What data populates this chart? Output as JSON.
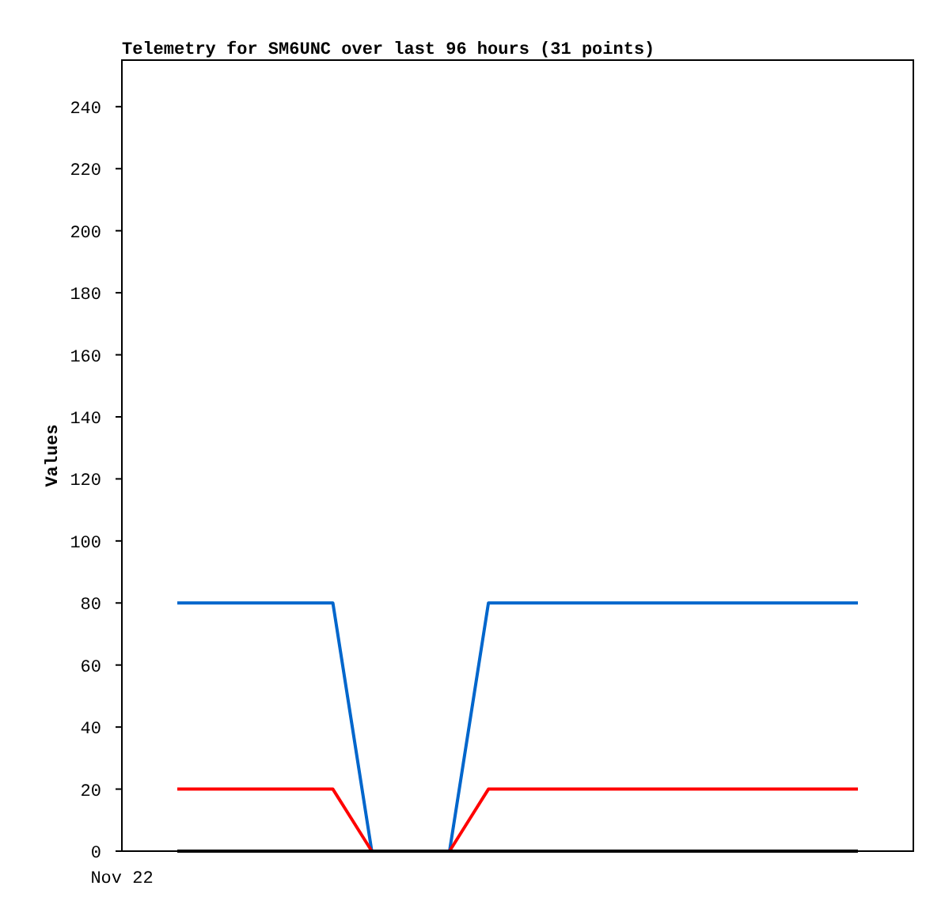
{
  "chart_data": {
    "type": "line",
    "title": "Telemetry for SM6UNC over last 96 hours (31 points)",
    "ylabel": "Values",
    "annotations": [
      "Nov 22"
    ],
    "categories": [
      null,
      null,
      null,
      null,
      null,
      null,
      null,
      null,
      null,
      null,
      null,
      null,
      null,
      null,
      null,
      null,
      null,
      null,
      null,
      null,
      null,
      null,
      null,
      null,
      null,
      null,
      null,
      null,
      null,
      null,
      null,
      null,
      null,
      null,
      null,
      null
    ],
    "ylim": [
      0,
      255
    ],
    "yticks": [
      0,
      20,
      40,
      60,
      80,
      100,
      120,
      140,
      160,
      180,
      200,
      220,
      240
    ],
    "series": [
      {
        "color": "#0066cc",
        "values": [
          80,
          80,
          80,
          80,
          80,
          80,
          80,
          80,
          80,
          40,
          0,
          0,
          0,
          0,
          0,
          40,
          80,
          80,
          80,
          80,
          80,
          80,
          80,
          80,
          80,
          80,
          80,
          80,
          80,
          80,
          80,
          80,
          80,
          80,
          80,
          80
        ]
      },
      {
        "color": "#ff0000",
        "values": [
          20,
          20,
          20,
          20,
          20,
          20,
          20,
          20,
          20,
          10,
          0,
          0,
          0,
          0,
          0,
          10,
          20,
          20,
          20,
          20,
          20,
          20,
          20,
          20,
          20,
          20,
          20,
          20,
          20,
          20,
          20,
          20,
          20,
          20,
          20,
          20
        ]
      },
      {
        "color": "#000000",
        "values": [
          0,
          0,
          0,
          0,
          0,
          0,
          0,
          0,
          0,
          0,
          0,
          0,
          0,
          0,
          0,
          0,
          0,
          0,
          0,
          0,
          0,
          0,
          0,
          0,
          0,
          0,
          0,
          0,
          0,
          0,
          0,
          0,
          0,
          0,
          0,
          0
        ]
      }
    ]
  }
}
